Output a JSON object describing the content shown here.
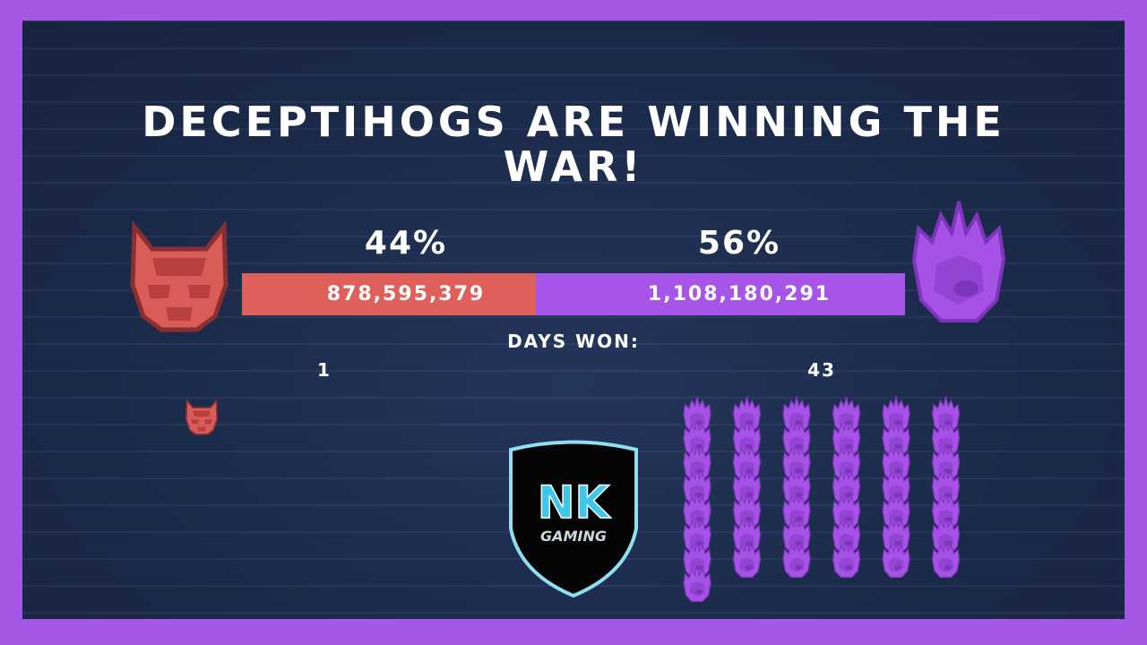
{
  "title": "DECEPTIHOGS ARE WINNING THE WAR!",
  "factions": [
    {
      "percent": "44%",
      "score": "878,595,379",
      "days_won": 1
    },
    {
      "percent": "56%",
      "score": "1,108,180,291",
      "days_won": 43
    }
  ],
  "days_won_label": "DAYS WON:",
  "logo": {
    "initials": "NK",
    "subtitle": "GAMING"
  }
}
